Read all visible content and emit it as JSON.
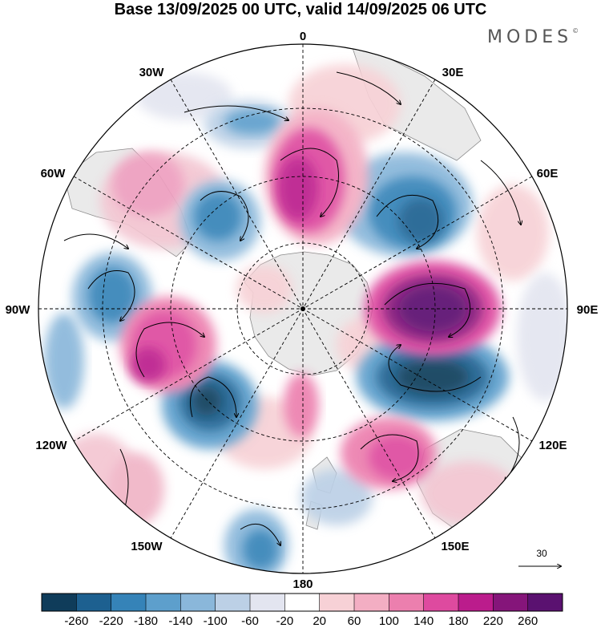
{
  "title": "Base 13/09/2025 00 UTC, valid 14/09/2025 06 UTC",
  "brand": {
    "name": "MODES",
    "mark": "©"
  },
  "longitude_labels": {
    "lon_0": "0",
    "lon_30e": "30E",
    "lon_60e": "60E",
    "lon_90e": "90E",
    "lon_120e": "120E",
    "lon_150e": "150E",
    "lon_180": "180",
    "lon_150w": "150W",
    "lon_120w": "120W",
    "lon_90w": "90W",
    "lon_60w": "60W",
    "lon_30w": "30W"
  },
  "reference_vector": {
    "value": "30"
  },
  "colorbar": {
    "labels": [
      "-260",
      "-220",
      "-180",
      "-140",
      "-100",
      "-60",
      "-20",
      "20",
      "60",
      "100",
      "140",
      "180",
      "220",
      "260"
    ],
    "colors": [
      "#0f3c5a",
      "#1d6090",
      "#3583b8",
      "#5d9fcc",
      "#8ab7da",
      "#bcd0e6",
      "#e3e5f0",
      "#ffffff",
      "#f7d1d6",
      "#f3aec3",
      "#ec7fae",
      "#de4a9f",
      "#bb1c8c",
      "#85157a",
      "#5a1170"
    ]
  },
  "colors": {
    "land": "#eaeaea",
    "coast": "#8a8a8a",
    "grid": "#000000",
    "circle": "#000000"
  }
}
